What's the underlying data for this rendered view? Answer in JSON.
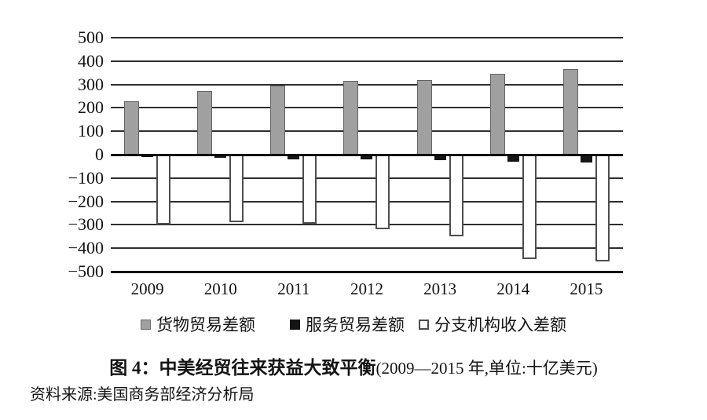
{
  "figure": {
    "title_bold": "图 4：中美经贸往来获益大致平衡",
    "title_paren": "(2009—2015 年,单位:十亿美元)",
    "source": "资料来源:美国商务部经济分析局"
  },
  "colors": {
    "goods_bar": "#a0a0a0",
    "services_bar": "#161616",
    "branch_bar_fill": "#ffffff",
    "bar_outline": "#4d4d4d",
    "gridline": "#2e2e2e",
    "zero_axis": "#0a0a0a",
    "text": "#141414",
    "background": "#ffffff"
  },
  "chart_data": {
    "type": "bar",
    "categories": [
      "2009",
      "2010",
      "2011",
      "2012",
      "2013",
      "2014",
      "2015"
    ],
    "series": [
      {
        "name": "货物贸易差额",
        "style": "gray",
        "values": [
          227,
          273,
          295,
          315,
          319,
          345,
          367
        ]
      },
      {
        "name": "服务贸易差额",
        "style": "black",
        "values": [
          -10,
          -15,
          -20,
          -20,
          -25,
          -30,
          -35
        ]
      },
      {
        "name": "分支机构收入差额",
        "style": "white",
        "values": [
          -300,
          -290,
          -295,
          -320,
          -350,
          -445,
          -455
        ]
      }
    ],
    "ylim": [
      -500,
      500
    ],
    "ytick_interval": 100,
    "ytick_values": [
      500,
      400,
      300,
      200,
      100,
      0,
      -100,
      -200,
      -300,
      -400,
      -500
    ],
    "ytick_labels": [
      "500",
      "400",
      "300",
      "200",
      "100",
      "0",
      "−100",
      "−200",
      "−300",
      "−400",
      "−500"
    ],
    "grid": true,
    "legend_position": "bottom",
    "title": "图 4：中美经贸往来获益大致平衡(2009—2015 年,单位:十亿美元)",
    "xlabel": "",
    "ylabel": ""
  }
}
